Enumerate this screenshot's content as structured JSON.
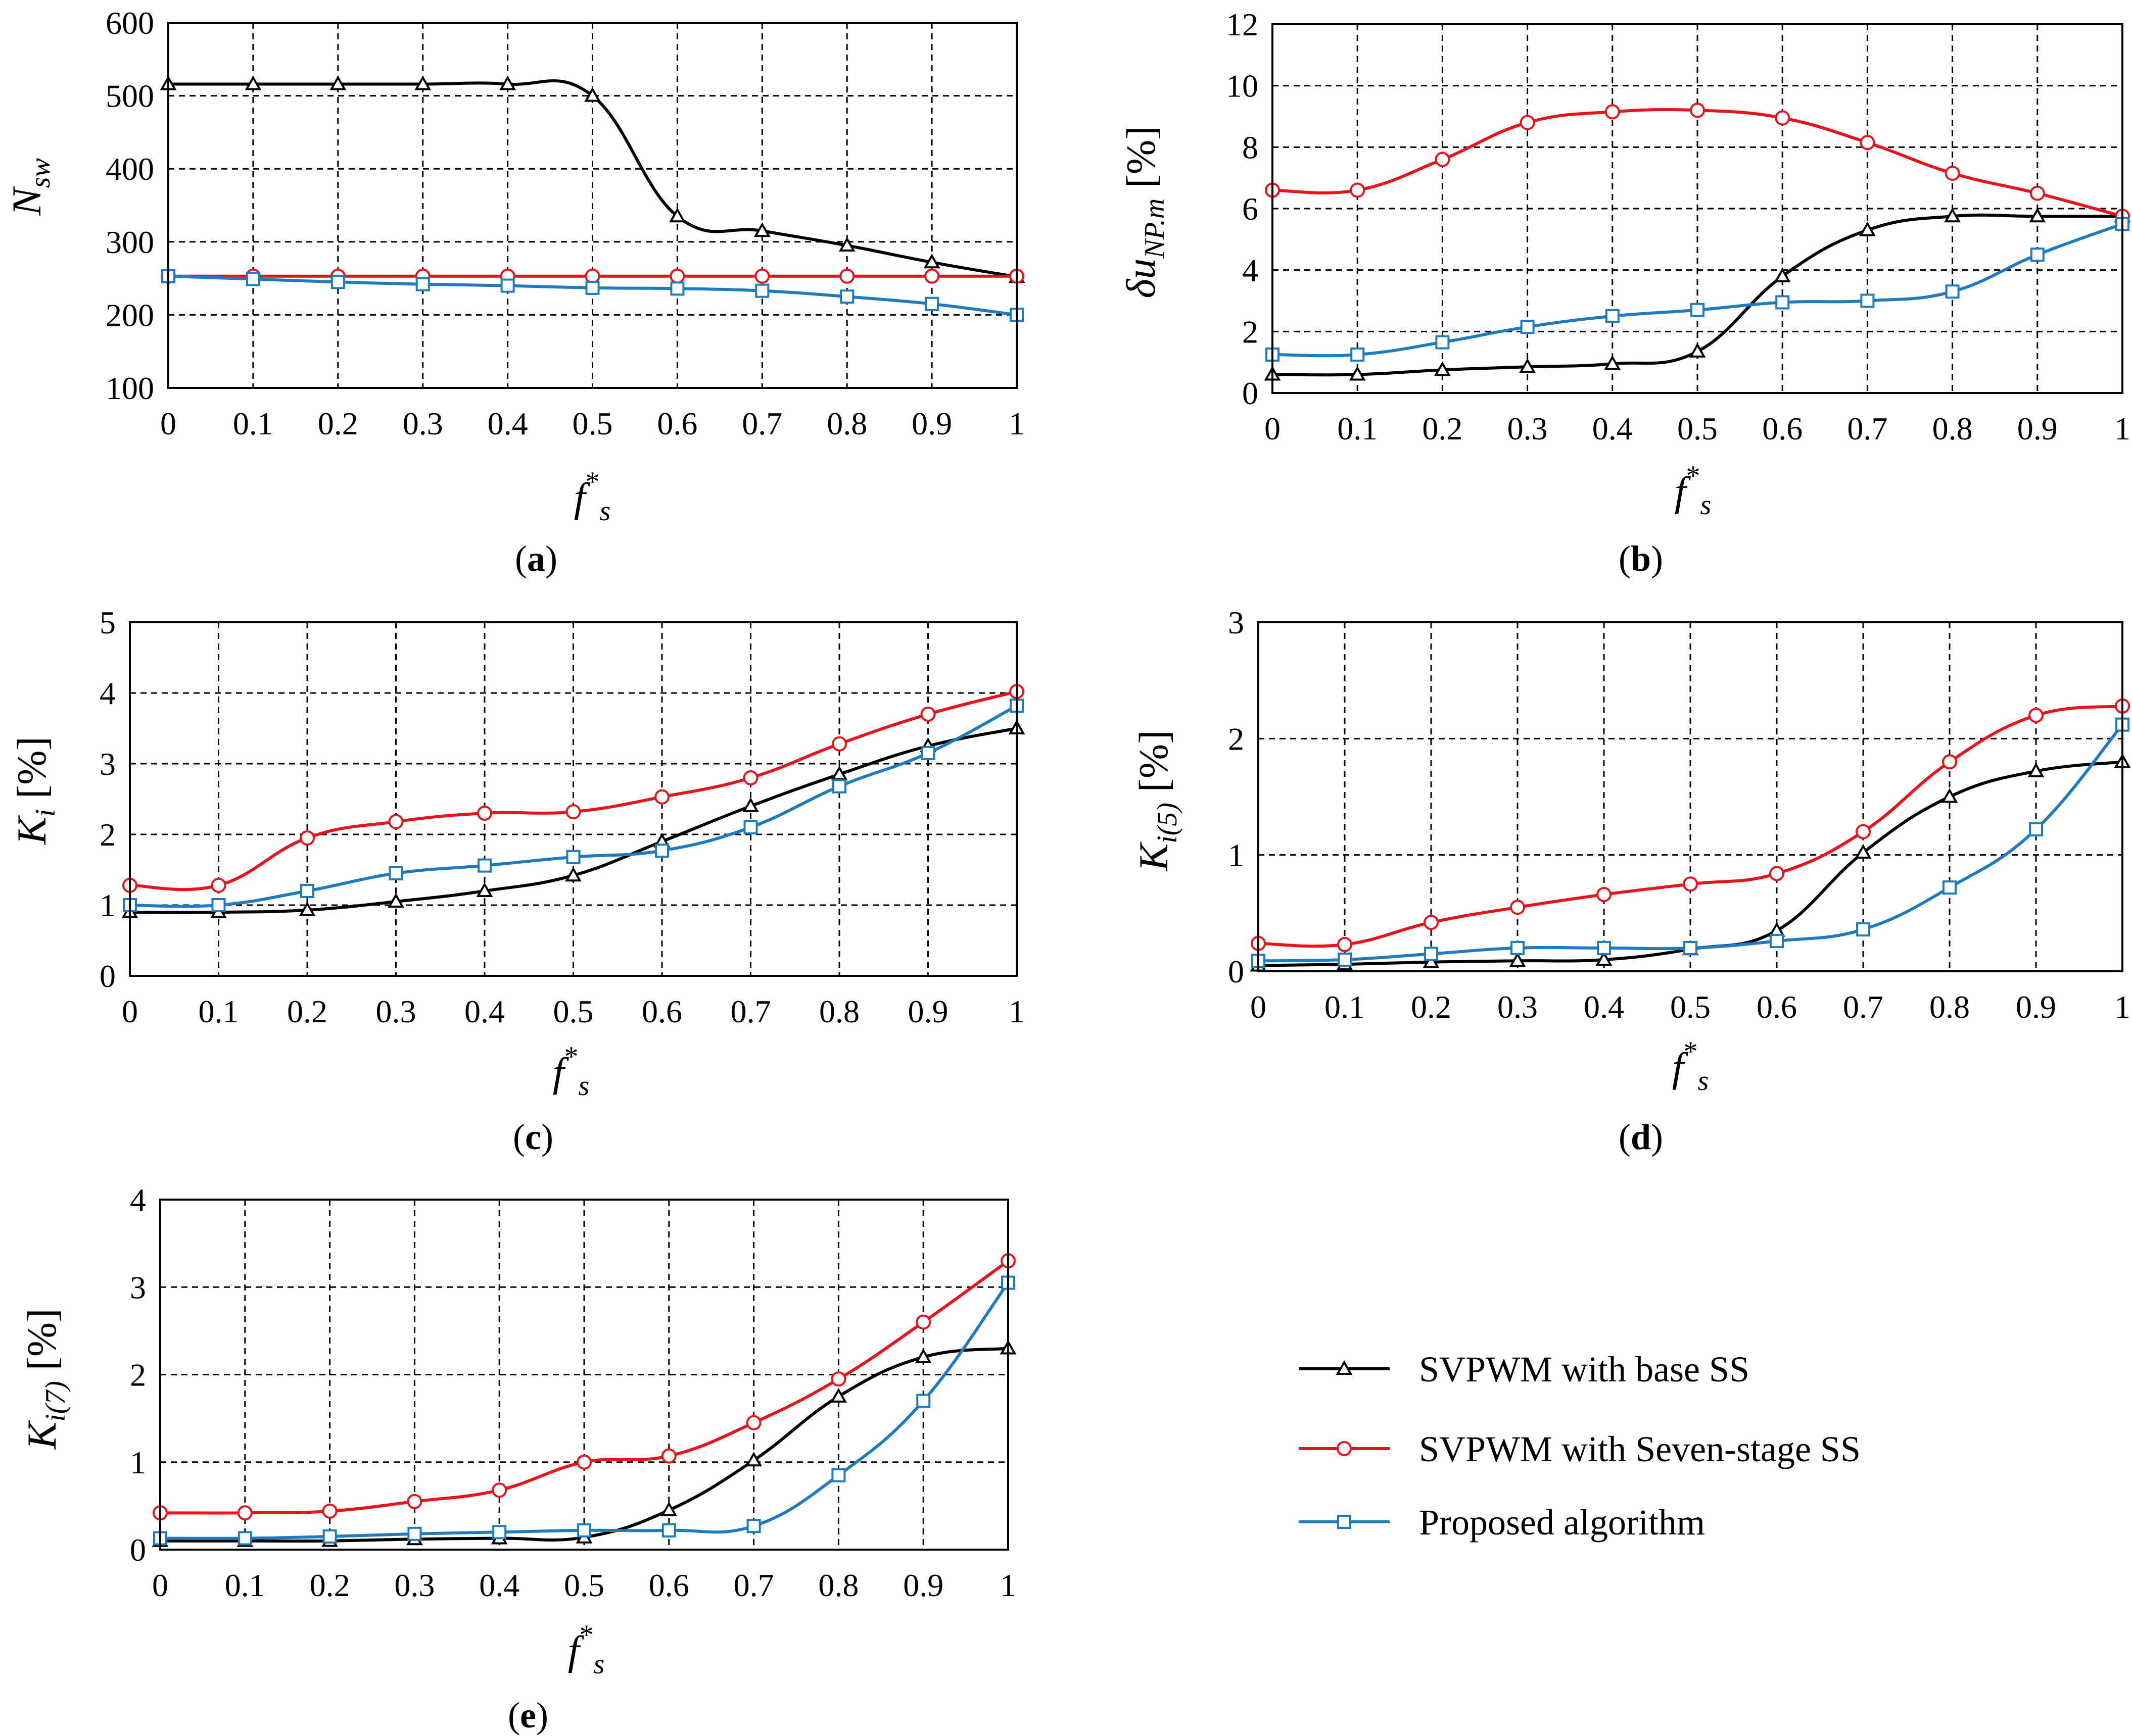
{
  "series_names": [
    "SVPWM with base SS",
    "SVPWM with Seven-stage SS",
    "Proposed algorithm"
  ],
  "series_colors": [
    "#000000",
    "#e8141b",
    "#1f7bbf"
  ],
  "series_markers": [
    "triangle",
    "circle",
    "square"
  ],
  "chart_data": [
    {
      "id": "a",
      "type": "line",
      "panel_label": "a",
      "xlabel": "f*s",
      "ylabel": "N_sw",
      "xlim": [
        0,
        1
      ],
      "ylim": [
        100,
        600
      ],
      "xticks": [
        "0",
        "0.1",
        "0.2",
        "0.3",
        "0.4",
        "0.5",
        "0.6",
        "0.7",
        "0.8",
        "0.9",
        "1"
      ],
      "yticks": [
        "100",
        "200",
        "300",
        "400",
        "500",
        "600"
      ],
      "x": [
        0,
        0.1,
        0.2,
        0.3,
        0.4,
        0.5,
        0.6,
        0.7,
        0.8,
        0.9,
        1
      ],
      "series": [
        {
          "name": "SVPWM with base SS",
          "values": [
            516,
            516,
            516,
            516,
            516,
            500,
            335,
            315,
            295,
            272,
            252
          ]
        },
        {
          "name": "SVPWM with Seven-stage SS",
          "values": [
            253,
            253,
            253,
            253,
            253,
            253,
            253,
            253,
            253,
            253,
            253
          ]
        },
        {
          "name": "Proposed algorithm",
          "values": [
            253,
            249,
            245,
            242,
            240,
            237,
            236,
            233,
            225,
            215,
            200
          ]
        }
      ]
    },
    {
      "id": "b",
      "type": "line",
      "panel_label": "b",
      "xlabel": "f*s",
      "ylabel": "δu_NP.m [%]",
      "xlim": [
        0,
        1
      ],
      "ylim": [
        0,
        12
      ],
      "xticks": [
        "0",
        "0.1",
        "0.2",
        "0.3",
        "0.4",
        "0.5",
        "0.6",
        "0.7",
        "0.8",
        "0.9",
        "1"
      ],
      "yticks": [
        "0",
        "2",
        "4",
        "6",
        "8",
        "10",
        "12"
      ],
      "x": [
        0,
        0.1,
        0.2,
        0.3,
        0.4,
        0.5,
        0.6,
        0.7,
        0.8,
        0.9,
        1
      ],
      "series": [
        {
          "name": "SVPWM with base SS",
          "values": [
            0.6,
            0.6,
            0.75,
            0.85,
            0.95,
            1.35,
            3.8,
            5.3,
            5.75,
            5.75,
            5.75
          ]
        },
        {
          "name": "SVPWM with Seven-stage SS",
          "values": [
            6.6,
            6.6,
            7.6,
            8.8,
            9.15,
            9.2,
            8.95,
            8.15,
            7.15,
            6.5,
            5.75
          ]
        },
        {
          "name": "Proposed algorithm",
          "values": [
            1.25,
            1.25,
            1.65,
            2.15,
            2.5,
            2.7,
            2.95,
            3.0,
            3.3,
            4.5,
            5.5
          ]
        }
      ]
    },
    {
      "id": "c",
      "type": "line",
      "panel_label": "c",
      "xlabel": "f*s",
      "ylabel": "K_i [%]",
      "xlim": [
        0,
        1
      ],
      "ylim": [
        0,
        5
      ],
      "xticks": [
        "0",
        "0.1",
        "0.2",
        "0.3",
        "0.4",
        "0.5",
        "0.6",
        "0.7",
        "0.8",
        "0.9",
        "1"
      ],
      "yticks": [
        "0",
        "1",
        "2",
        "3",
        "4",
        "5"
      ],
      "x": [
        0,
        0.1,
        0.2,
        0.3,
        0.4,
        0.5,
        0.6,
        0.7,
        0.8,
        0.9,
        1
      ],
      "series": [
        {
          "name": "SVPWM with base SS",
          "values": [
            0.9,
            0.9,
            0.93,
            1.05,
            1.2,
            1.42,
            1.9,
            2.4,
            2.85,
            3.25,
            3.5
          ]
        },
        {
          "name": "SVPWM with Seven-stage SS",
          "values": [
            1.28,
            1.28,
            1.95,
            2.18,
            2.3,
            2.32,
            2.53,
            2.8,
            3.28,
            3.7,
            4.02
          ]
        },
        {
          "name": "Proposed algorithm",
          "values": [
            1.0,
            1.0,
            1.2,
            1.45,
            1.56,
            1.68,
            1.77,
            2.1,
            2.68,
            3.15,
            3.82
          ]
        }
      ]
    },
    {
      "id": "d",
      "type": "line",
      "panel_label": "d",
      "xlabel": "f*s",
      "ylabel": "K_i(5) [%]",
      "xlim": [
        0,
        1
      ],
      "ylim": [
        0,
        3
      ],
      "xticks": [
        "0",
        "0.1",
        "0.2",
        "0.3",
        "0.4",
        "0.5",
        "0.6",
        "0.7",
        "0.8",
        "0.9",
        "1"
      ],
      "yticks": [
        "0",
        "1",
        "2",
        "3"
      ],
      "x": [
        0,
        0.1,
        0.2,
        0.3,
        0.4,
        0.5,
        0.6,
        0.7,
        0.8,
        0.9,
        1
      ],
      "series": [
        {
          "name": "SVPWM with base SS",
          "values": [
            0.05,
            0.06,
            0.08,
            0.09,
            0.1,
            0.19,
            0.35,
            1.02,
            1.5,
            1.72,
            1.8
          ]
        },
        {
          "name": "SVPWM with Seven-stage SS",
          "values": [
            0.24,
            0.23,
            0.42,
            0.55,
            0.66,
            0.75,
            0.84,
            1.2,
            1.8,
            2.2,
            2.28
          ]
        },
        {
          "name": "Proposed algorithm",
          "values": [
            0.09,
            0.1,
            0.15,
            0.2,
            0.2,
            0.2,
            0.26,
            0.36,
            0.72,
            1.22,
            2.12
          ]
        }
      ]
    },
    {
      "id": "e",
      "type": "line",
      "panel_label": "e",
      "xlabel": "f*s",
      "ylabel": "K_i(7) [%]",
      "xlim": [
        0,
        1
      ],
      "ylim": [
        0,
        4
      ],
      "xticks": [
        "0",
        "0.1",
        "0.2",
        "0.3",
        "0.4",
        "0.5",
        "0.6",
        "0.7",
        "0.8",
        "0.9",
        "1"
      ],
      "yticks": [
        "0",
        "1",
        "2",
        "3",
        "4"
      ],
      "x": [
        0,
        0.1,
        0.2,
        0.3,
        0.4,
        0.5,
        0.6,
        0.7,
        0.8,
        0.9,
        1
      ],
      "series": [
        {
          "name": "SVPWM with base SS",
          "values": [
            0.1,
            0.1,
            0.1,
            0.12,
            0.13,
            0.14,
            0.45,
            1.02,
            1.75,
            2.2,
            2.3
          ]
        },
        {
          "name": "SVPWM with Seven-stage SS",
          "values": [
            0.42,
            0.42,
            0.44,
            0.55,
            0.68,
            1.0,
            1.07,
            1.45,
            1.95,
            2.6,
            3.3
          ]
        },
        {
          "name": "Proposed algorithm",
          "values": [
            0.13,
            0.13,
            0.15,
            0.18,
            0.2,
            0.22,
            0.22,
            0.27,
            0.85,
            1.7,
            3.05
          ]
        }
      ]
    }
  ]
}
